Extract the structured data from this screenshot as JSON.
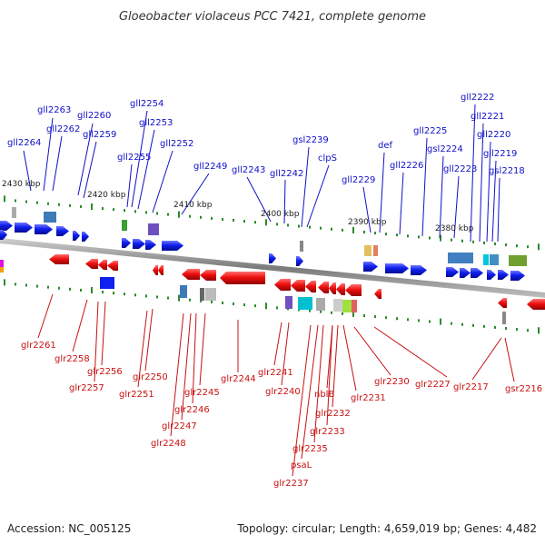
{
  "title": "Gloeobacter violaceus PCC 7421, complete genome",
  "accession_label": "Accession: NC_005125",
  "topology_label": "Topology: circular; Length: 4,659,019 bp; Genes: 4,482",
  "kbp_ticks": [
    "2430 kbp",
    "2420 kbp",
    "2410 kbp",
    "2400 kbp",
    "2390 kbp",
    "2380 kbp"
  ],
  "top_genes": [
    "gll2264",
    "gll2263",
    "gll2262",
    "gll2260",
    "gll2259",
    "gll2255",
    "gll2254",
    "gll2253",
    "gll2252",
    "gll2249",
    "gll2243",
    "gll2242",
    "gsl2239",
    "clpS",
    "gll2229",
    "def",
    "gll2226",
    "gll2225",
    "gsl2224",
    "gll2223",
    "gll2222",
    "gll2221",
    "gll2220",
    "gll2219",
    "gsl2218"
  ],
  "bottom_genes": [
    "glr2261",
    "glr2258",
    "glr2256",
    "glr2257",
    "glr2250",
    "glr2251",
    "glr2245",
    "glr2246",
    "glr2247",
    "glr2248",
    "glr2244",
    "glr2241",
    "glr2240",
    "nblB",
    "glr2232",
    "glr2233",
    "glr2235",
    "psaL",
    "glr2237",
    "glr2231",
    "glr2230",
    "glr2227",
    "glr2217",
    "gsr2216"
  ],
  "colors": {
    "forward": "#0a14e6",
    "reverse": "#e60a0a",
    "top_label": "#1010c8",
    "bottom_label": "#c81010",
    "tick": "#2a8a2a",
    "backbone": "#888888"
  }
}
